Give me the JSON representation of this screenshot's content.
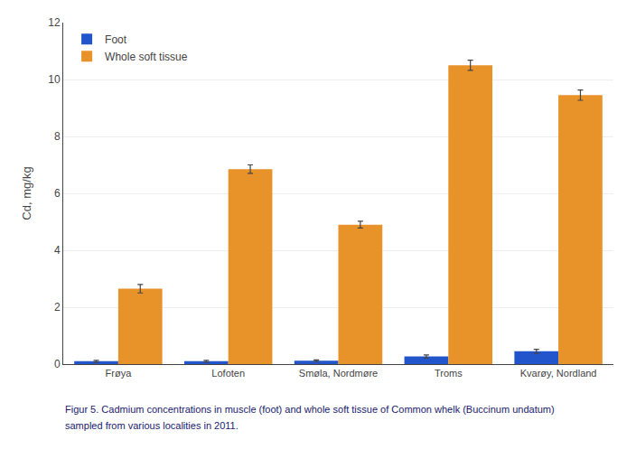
{
  "chart_data": {
    "type": "bar",
    "categories": [
      "Frøya",
      "Lofoten",
      "Smøla, Nordmøre",
      "Troms",
      "Kvarøy, Nordland"
    ],
    "series": [
      {
        "name": "Foot",
        "color": "#2255cc",
        "values": [
          0.1,
          0.1,
          0.12,
          0.27,
          0.45
        ],
        "errors": [
          0.03,
          0.03,
          0.03,
          0.05,
          0.07
        ]
      },
      {
        "name": "Whole soft tissue",
        "color": "#e8922a",
        "values": [
          2.65,
          6.85,
          4.9,
          10.5,
          9.45
        ],
        "errors": [
          0.15,
          0.15,
          0.12,
          0.18,
          0.18
        ]
      }
    ],
    "ylabel": "Cd, mg/kg",
    "ylim": [
      0,
      12
    ],
    "yticks": [
      0,
      2,
      4,
      6,
      8,
      10,
      12
    ],
    "grid": true,
    "legend": "upper left",
    "annotations": [
      "Figur 5. Cadmium concentrations in muscle (foot) and whole soft tissue of Common whelk (Buccinum undatum)",
      "sampled from various localities in 2011."
    ]
  }
}
